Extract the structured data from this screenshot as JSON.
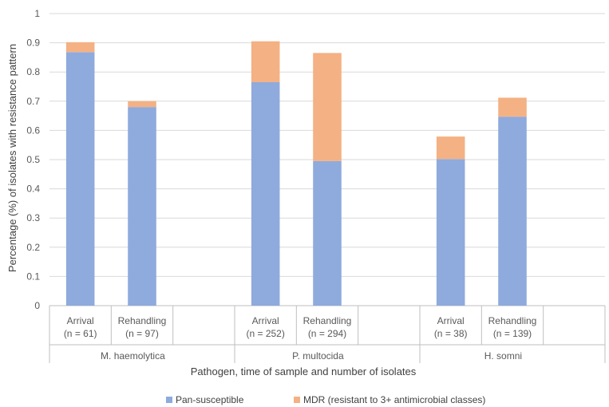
{
  "chart_data": {
    "type": "bar",
    "stacked": true,
    "title": "",
    "ylabel": "Percentage (%) of isolates with resistance pattern",
    "xlabel": "Pathogen, time of sample and number of isolates",
    "ylim": [
      0,
      1
    ],
    "yticks": [
      "0",
      "0.1",
      "0.2",
      "0.3",
      "0.4",
      "0.5",
      "0.6",
      "0.7",
      "0.8",
      "0.9",
      "1"
    ],
    "grid": true,
    "legend_position": "bottom",
    "groups": [
      {
        "label": "M. haemolytica",
        "categories": [
          {
            "line1": "Arrival",
            "line2": "(n = 61)"
          },
          {
            "line1": "Rehandling",
            "line2": "(n = 97)"
          }
        ]
      },
      {
        "label": "P. multocida",
        "categories": [
          {
            "line1": "Arrival",
            "line2": "(n = 252)"
          },
          {
            "line1": "Rehandling",
            "line2": "(n = 294)"
          }
        ]
      },
      {
        "label": "H. somni",
        "categories": [
          {
            "line1": "Arrival",
            "line2": "(n = 38)"
          },
          {
            "line1": "Rehandling",
            "line2": "(n = 139)"
          }
        ]
      }
    ],
    "series": [
      {
        "name": "Pan-susceptible",
        "color": "#8faadc",
        "values": [
          [
            0.868,
            0.68
          ],
          [
            0.765,
            0.495
          ],
          [
            0.502,
            0.647
          ]
        ]
      },
      {
        "name": "MDR (resistant to 3+ antimicrobial classes)",
        "color": "#f4b183",
        "values": [
          [
            0.034,
            0.02
          ],
          [
            0.14,
            0.37
          ],
          [
            0.077,
            0.065
          ]
        ]
      }
    ]
  }
}
